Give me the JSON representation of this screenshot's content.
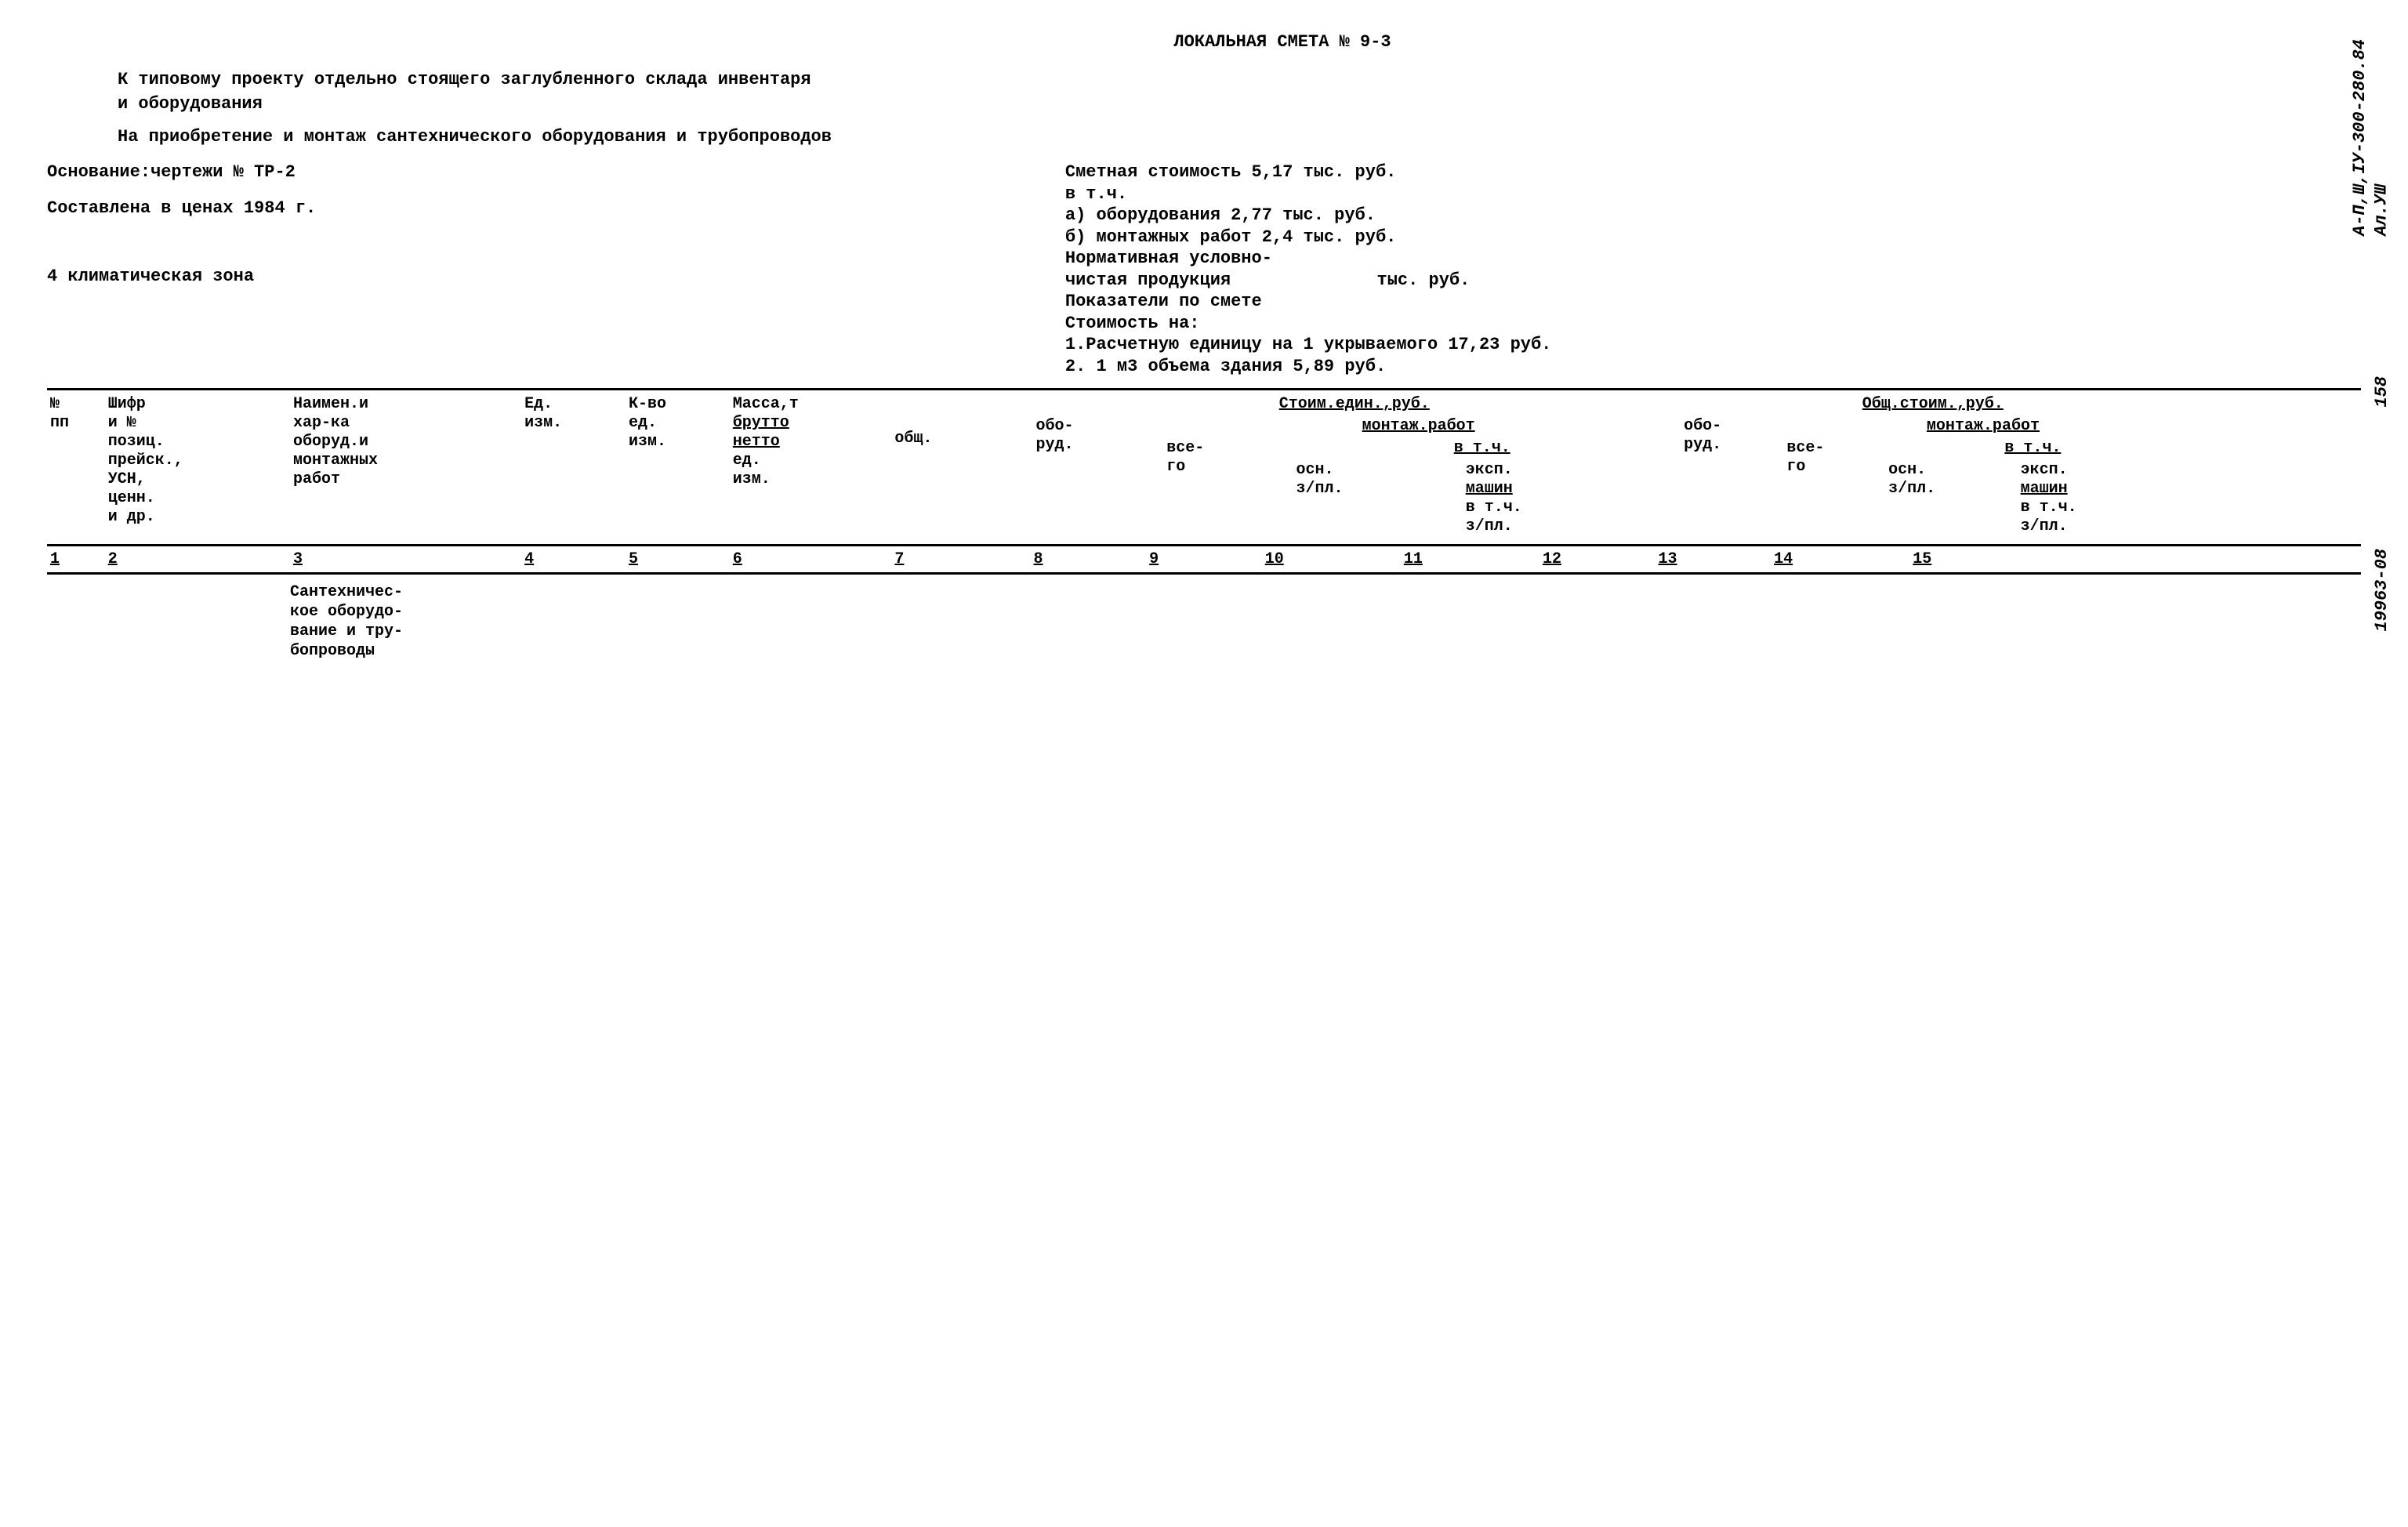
{
  "side_labels": {
    "code1": "А-П,Ш,IУ-300-280.84",
    "code2": "Ал.УШ",
    "page": "158",
    "stamp": "19963-08"
  },
  "header": {
    "title": "ЛОКАЛЬНАЯ СМЕТА № 9-3",
    "line1": "К типовому проекту отдельно стоящего заглубленного склада инвентаря",
    "line2": "и оборудования",
    "line3": "На приобретение и монтаж  сантехнического оборудования и трубопроводов"
  },
  "left": {
    "basis": "Основание:чертежи № ТР-2",
    "prices": "Составлена в ценах 1984 г.",
    "zone": "4 климатическая зона"
  },
  "right": {
    "l1": "Сметная стоимость 5,17 тыс. руб.",
    "l2": "в т.ч.",
    "l3": "а) оборудования 2,77 тыс. руб.",
    "l4": "б) монтажных работ 2,4 тыс. руб.",
    "l5": "Нормативная условно-",
    "l6a": "чистая продукция",
    "l6b": "тыс. руб.",
    "l7": "Показатели по смете",
    "l8": "Стоимость на:",
    "l9": "1.Расчетную единицу на 1 укрываемого 17,23 руб.",
    "l10": "2. 1 м3 объема здания 5,89 руб."
  },
  "columns": {
    "c1": "№\nпп",
    "c2": "Шифр\nи №\nпозиц.\nпрейск.,\nУСН,\nценн.\nи др.",
    "c3": "Наимен.и\nхар-ка\nоборуд.и\nмонтажных\nработ",
    "c4": "Ед.\nизм.",
    "c5": "К-во\nед.\nизм.",
    "c6a": "Масса,т",
    "c6b": "брутто",
    "c6c": "нетто",
    "c6d": "ед.\nизм.",
    "grp_stoim": "Стоим.един.,руб.",
    "grp_obsh": "Общ.стоим.,руб.",
    "c7": "общ.",
    "c8": "обо-\nруд.",
    "c9": "все-\nго",
    "montazh": "монтаж.работ",
    "vtch": "в т.ч.",
    "c10": "осн.\nз/пл.",
    "c11a": "эксп.",
    "c11b": "машин",
    "c11c": "в т.ч.",
    "c11d": "з/пл."
  },
  "nums": {
    "n1": "1",
    "n2": "2",
    "n3": "3",
    "n4": "4",
    "n5": "5",
    "n6": "6",
    "n7": "7",
    "n8": "8",
    "n9": "9",
    "n10": "10",
    "n11": "11",
    "n12": "12",
    "n13": "13",
    "n14": "14",
    "n15": "15"
  },
  "row1": {
    "name": "Сантехничес-\nкое оборудо-\nвание и тру-\nбопроводы"
  },
  "colors": {
    "text": "#000000",
    "bg": "#ffffff",
    "border": "#000000"
  }
}
